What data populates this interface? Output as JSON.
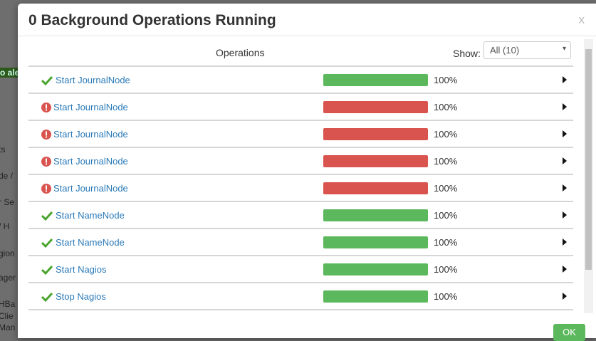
{
  "modal": {
    "title": "0 Background Operations Running",
    "close": "x",
    "column_header": "Operations",
    "show_label": "Show:",
    "show_select": "All (10)",
    "ok_button": "OK",
    "rows": [
      {
        "name": "Start JournalNode",
        "status": "success",
        "progress": 100,
        "progress_label": "100%"
      },
      {
        "name": "Start JournalNode",
        "status": "failed",
        "progress": 100,
        "progress_label": "100%"
      },
      {
        "name": "Start JournalNode",
        "status": "failed",
        "progress": 100,
        "progress_label": "100%"
      },
      {
        "name": "Start JournalNode",
        "status": "failed",
        "progress": 100,
        "progress_label": "100%"
      },
      {
        "name": "Start JournalNode",
        "status": "failed",
        "progress": 100,
        "progress_label": "100%"
      },
      {
        "name": "Start NameNode",
        "status": "success",
        "progress": 100,
        "progress_label": "100%"
      },
      {
        "name": "Start NameNode",
        "status": "success",
        "progress": 100,
        "progress_label": "100%"
      },
      {
        "name": "Start Nagios",
        "status": "success",
        "progress": 100,
        "progress_label": "100%"
      },
      {
        "name": "Stop Nagios",
        "status": "success",
        "progress": 100,
        "progress_label": "100%"
      }
    ],
    "status_colors": {
      "success": "#5cb85c",
      "failed": "#d9534f"
    }
  },
  "background": {
    "fragments": [
      "l",
      "o ale",
      "ts",
      "de /",
      "r Se",
      "/ H",
      "gion",
      "ager",
      "HBa",
      "Clie",
      "Man"
    ]
  }
}
